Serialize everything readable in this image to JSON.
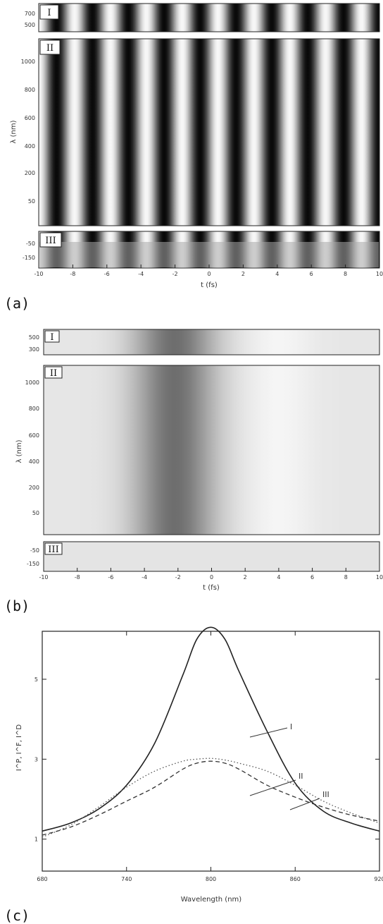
{
  "chart_data": [
    {
      "type": "heatmap",
      "panel_label": "(a)",
      "xlabel": "t (fs)",
      "x_ticks": [
        "-10",
        "-8",
        "-6",
        "-4",
        "-2",
        "0",
        "2",
        "4",
        "6",
        "8",
        "10"
      ],
      "xlim": [
        -10,
        10
      ],
      "cycles_across": 9.5,
      "strips": [
        {
          "tag": "I",
          "y_ticks": [
            "700",
            "500"
          ]
        },
        {
          "tag": "II",
          "ylabel": "λ (nm)",
          "y_ticks": [
            "1000",
            "800",
            "600",
            "400",
            "200",
            "50"
          ]
        },
        {
          "tag": "III",
          "y_ticks": [
            "-50",
            "-150"
          ]
        }
      ]
    },
    {
      "type": "heatmap",
      "panel_label": "(b)",
      "xlabel": "t (fs)",
      "x_ticks": [
        "-10",
        "-8",
        "-6",
        "-4",
        "-2",
        "0",
        "2",
        "4",
        "6",
        "8",
        "10"
      ],
      "xlim": [
        -10,
        10
      ],
      "strips": [
        {
          "tag": "I",
          "y_ticks": [
            "500",
            "300"
          ]
        },
        {
          "tag": "II",
          "ylabel": "λ (nm)",
          "y_ticks": [
            "1000",
            "800",
            "600",
            "400",
            "200",
            "50"
          ]
        },
        {
          "tag": "III",
          "y_ticks": [
            "-50",
            "-150"
          ]
        }
      ]
    },
    {
      "type": "line",
      "panel_label": "(c)",
      "xlabel": "Wavelength (nm)",
      "ylabel": "I^P, I^F, I^D",
      "xlim": [
        680,
        920
      ],
      "ylim": [
        0.2,
        6.2
      ],
      "x_ticks": [
        680,
        740,
        800,
        860,
        920
      ],
      "y_ticks": [
        1,
        3,
        5
      ],
      "y_tick_labels": [
        "1",
        "3",
        "5"
      ],
      "x": [
        680,
        700,
        720,
        740,
        760,
        780,
        790,
        800,
        810,
        820,
        840,
        860,
        880,
        900,
        920
      ],
      "series": [
        {
          "name": "I",
          "style": "solid",
          "values": [
            1.2,
            1.4,
            1.75,
            2.35,
            3.4,
            5.1,
            6.0,
            6.3,
            6.0,
            5.2,
            3.7,
            2.4,
            1.7,
            1.4,
            1.2
          ]
        },
        {
          "name": "II",
          "style": "dotted",
          "values": [
            1.05,
            1.35,
            1.8,
            2.3,
            2.7,
            2.95,
            3.0,
            3.02,
            2.98,
            2.9,
            2.7,
            2.35,
            1.95,
            1.65,
            1.4
          ]
        },
        {
          "name": "III",
          "style": "dashed",
          "values": [
            1.1,
            1.3,
            1.6,
            1.95,
            2.3,
            2.75,
            2.9,
            2.95,
            2.9,
            2.75,
            2.35,
            2.05,
            1.8,
            1.6,
            1.45
          ]
        }
      ]
    }
  ]
}
